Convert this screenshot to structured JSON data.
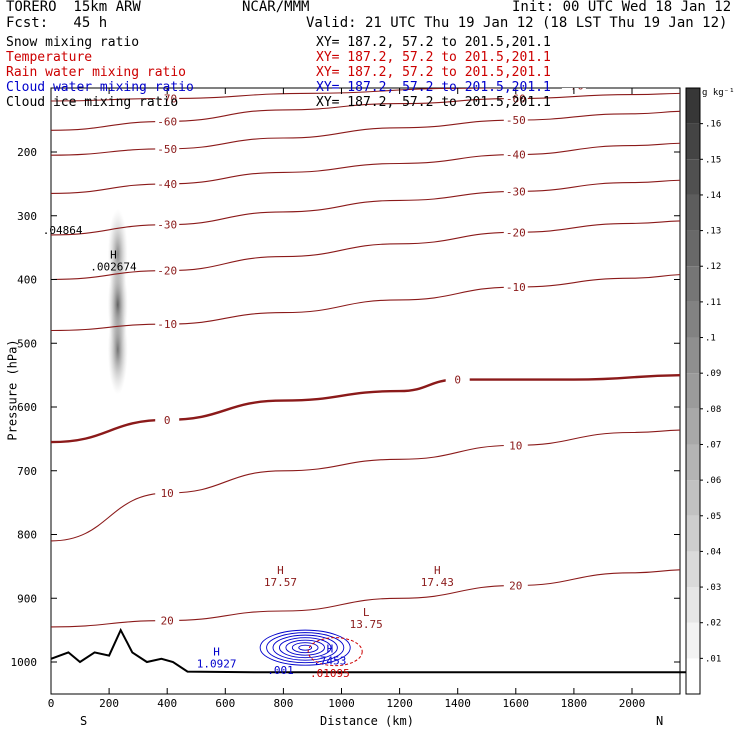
{
  "header": {
    "model": "TORERO  15km ARW",
    "org": "NCAR/MMM",
    "init": "Init: 00 UTC Wed 18 Jan 12",
    "fcst": "Fcst:   45 h",
    "valid": "Valid: 21 UTC Thu 19 Jan 12 (18 LST Thu 19 Jan 12)"
  },
  "fields": [
    {
      "name": "Snow mixing ratio",
      "color": "#000000",
      "xy": "XY= 187.2, 57.2 to 201.5,201.1",
      "xy_color": "#000000"
    },
    {
      "name": "Temperature",
      "color": "#cc0000",
      "xy": "XY= 187.2, 57.2 to 201.5,201.1",
      "xy_color": "#cc0000"
    },
    {
      "name": "Rain water mixing ratio",
      "color": "#cc0000",
      "xy": "XY= 187.2, 57.2 to 201.5,201.1",
      "xy_color": "#cc0000"
    },
    {
      "name": "Cloud water mixing ratio",
      "color": "#0000cc",
      "xy": "XY= 187.2, 57.2 to 201.5,201.1",
      "xy_color": "#0000cc"
    },
    {
      "name": "Cloud ice mixing ratio",
      "color": "#000000",
      "xy": "XY= 187.2, 57.2 to 201.5,201.1",
      "xy_color": "#000000"
    }
  ],
  "colors": {
    "temperature": "#8b1a1a",
    "rain": "#cc0000",
    "cloud_water": "#0000cc",
    "terrain": "#000000"
  },
  "chart_data": {
    "type": "contour",
    "xlabel": "Distance (km)",
    "ylabel": "Pressure (hPa)",
    "xlim": [
      0,
      2200
    ],
    "ylim": [
      1050,
      100
    ],
    "x_ticks": [
      0,
      200,
      400,
      600,
      800,
      1000,
      1200,
      1400,
      1600,
      1800,
      2000
    ],
    "y_ticks": [
      200,
      300,
      400,
      500,
      600,
      700,
      800,
      900,
      1000
    ],
    "direction_labels": {
      "left": "S",
      "right": "N"
    },
    "colorbar": {
      "unit": "g kg⁻¹",
      "ticks": [
        ".01",
        ".02",
        ".03",
        ".04",
        ".05",
        ".06",
        ".07",
        ".08",
        ".09",
        ".1",
        ".11",
        ".12",
        ".13",
        ".14",
        ".15",
        ".16"
      ],
      "min": 0.0,
      "max": 0.17
    },
    "temperature_contours": [
      {
        "level": -70,
        "points": [
          [
            0,
            120
          ],
          [
            400,
            116
          ],
          [
            900,
            108
          ],
          [
            1400,
            100
          ],
          [
            1800,
            96
          ],
          [
            2200,
            92
          ]
        ]
      },
      {
        "level": -60,
        "points": [
          [
            0,
            166
          ],
          [
            400,
            152
          ],
          [
            800,
            134
          ],
          [
            1200,
            124
          ],
          [
            1600,
            116
          ],
          [
            2000,
            110
          ],
          [
            2200,
            108
          ]
        ]
      },
      {
        "level": -50,
        "points": [
          [
            0,
            205
          ],
          [
            400,
            195
          ],
          [
            800,
            178
          ],
          [
            1200,
            162
          ],
          [
            1600,
            150
          ],
          [
            2000,
            140
          ],
          [
            2200,
            136
          ]
        ]
      },
      {
        "level": -40,
        "points": [
          [
            0,
            265
          ],
          [
            400,
            250
          ],
          [
            800,
            232
          ],
          [
            1200,
            218
          ],
          [
            1600,
            204
          ],
          [
            2000,
            190
          ],
          [
            2200,
            186
          ]
        ]
      },
      {
        "level": -30,
        "points": [
          [
            0,
            330
          ],
          [
            400,
            314
          ],
          [
            800,
            294
          ],
          [
            1200,
            276
          ],
          [
            1600,
            262
          ],
          [
            2000,
            248
          ],
          [
            2200,
            244
          ]
        ]
      },
      {
        "level": -20,
        "points": [
          [
            0,
            400
          ],
          [
            400,
            386
          ],
          [
            800,
            364
          ],
          [
            1200,
            344
          ],
          [
            1600,
            326
          ],
          [
            2000,
            312
          ],
          [
            2200,
            308
          ]
        ]
      },
      {
        "level": -10,
        "points": [
          [
            0,
            480
          ],
          [
            400,
            470
          ],
          [
            800,
            452
          ],
          [
            1200,
            432
          ],
          [
            1600,
            412
          ],
          [
            2000,
            398
          ],
          [
            2200,
            392
          ]
        ]
      },
      {
        "level": 0,
        "points": [
          [
            0,
            655
          ],
          [
            400,
            620
          ],
          [
            800,
            590
          ],
          [
            1200,
            575
          ],
          [
            1400,
            557
          ],
          [
            1800,
            557
          ],
          [
            2200,
            550
          ]
        ]
      },
      {
        "level": 10,
        "points": [
          [
            0,
            810
          ],
          [
            400,
            735
          ],
          [
            800,
            700
          ],
          [
            1200,
            682
          ],
          [
            1600,
            660
          ],
          [
            2000,
            640
          ],
          [
            2200,
            636
          ]
        ]
      },
      {
        "level": 20,
        "points": [
          [
            0,
            945
          ],
          [
            400,
            935
          ],
          [
            800,
            920
          ],
          [
            1200,
            900
          ],
          [
            1600,
            880
          ],
          [
            2000,
            860
          ],
          [
            2200,
            855
          ]
        ]
      }
    ],
    "annotations": [
      {
        "label": "H",
        "value": "17.57",
        "x": 790,
        "p": 862
      },
      {
        "label": "H",
        "value": "17.43",
        "x": 1330,
        "p": 862
      },
      {
        "label": "L",
        "value": "13.75",
        "x": 1085,
        "p": 928
      },
      {
        "label": "H",
        "value": ".002674",
        "x": 215,
        "p": 367
      },
      {
        "label": "",
        "value": ".04864",
        "x": 40,
        "p": 310
      },
      {
        "label": "H",
        "value": "1.0927",
        "x": 570,
        "p": 990
      },
      {
        "label": "H",
        "value": ".7453",
        "x": 960,
        "p": 985
      },
      {
        "label": "",
        "value": ".001",
        "x": 790,
        "p": 1000
      },
      {
        "label": "",
        "value": ".01095",
        "x": 960,
        "p": 1005
      }
    ],
    "snow_field": [
      {
        "x": 230,
        "p": 360,
        "value": 0.12
      },
      {
        "x": 230,
        "p": 440,
        "value": 0.16
      },
      {
        "x": 230,
        "p": 510,
        "value": 0.14
      }
    ],
    "cloud_water_region": {
      "x_range": [
        720,
        1030
      ],
      "p_range": [
        950,
        1005
      ],
      "max": 0.7453
    },
    "terrain": [
      [
        0,
        995
      ],
      [
        60,
        985
      ],
      [
        100,
        1000
      ],
      [
        150,
        985
      ],
      [
        200,
        990
      ],
      [
        240,
        950
      ],
      [
        280,
        985
      ],
      [
        330,
        1000
      ],
      [
        380,
        995
      ],
      [
        420,
        1000
      ],
      [
        470,
        1015
      ],
      [
        700,
        1016
      ],
      [
        1200,
        1016
      ],
      [
        2200,
        1016
      ]
    ]
  }
}
